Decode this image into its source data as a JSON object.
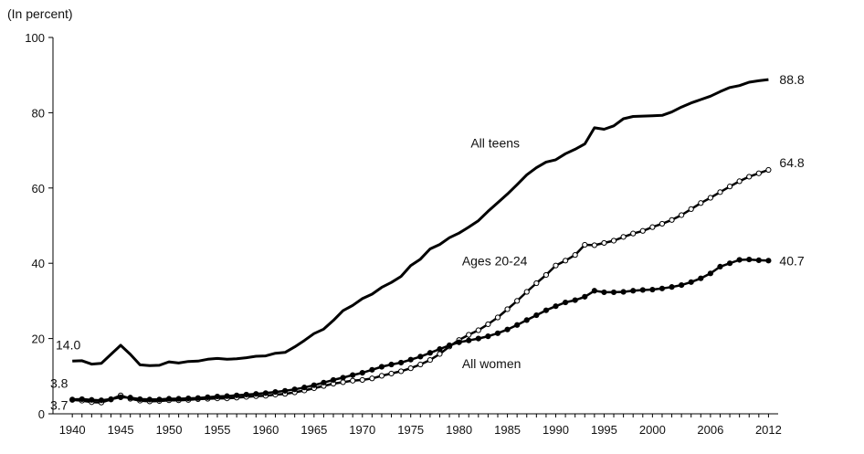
{
  "chart_data": {
    "type": "line",
    "unit_label": "(In percent)",
    "title": "",
    "xlabel": "",
    "ylabel": "",
    "ylim": [
      0,
      100
    ],
    "xlim": [
      1938,
      2013
    ],
    "y_ticks": [
      0,
      20,
      40,
      60,
      80,
      100
    ],
    "x_tick_labels": [
      {
        "year": 1940,
        "label": "1940"
      },
      {
        "year": 1945,
        "label": "1945"
      },
      {
        "year": 1950,
        "label": "1950"
      },
      {
        "year": 1955,
        "label": "1955"
      },
      {
        "year": 1960,
        "label": "1960"
      },
      {
        "year": 1965,
        "label": "1965"
      },
      {
        "year": 1970,
        "label": "1970"
      },
      {
        "year": 1975,
        "label": "1975"
      },
      {
        "year": 1980,
        "label": "1980"
      },
      {
        "year": 1985,
        "label": "1985"
      },
      {
        "year": 1990,
        "label": "1990"
      },
      {
        "year": 1995,
        "label": "1995"
      },
      {
        "year": 2000,
        "label": "2000"
      },
      {
        "year": 2006,
        "label": "2006"
      },
      {
        "year": 2012,
        "label": "2012"
      }
    ],
    "x": [
      1940,
      1941,
      1942,
      1943,
      1944,
      1945,
      1946,
      1947,
      1948,
      1949,
      1950,
      1951,
      1952,
      1953,
      1954,
      1955,
      1956,
      1957,
      1958,
      1959,
      1960,
      1961,
      1962,
      1963,
      1964,
      1965,
      1966,
      1967,
      1968,
      1969,
      1970,
      1971,
      1972,
      1973,
      1974,
      1975,
      1976,
      1977,
      1978,
      1979,
      1980,
      1981,
      1982,
      1983,
      1984,
      1985,
      1986,
      1987,
      1988,
      1989,
      1990,
      1991,
      1992,
      1993,
      1994,
      1995,
      1996,
      1997,
      1998,
      1999,
      2000,
      2001,
      2002,
      2003,
      2004,
      2005,
      2006,
      2007,
      2008,
      2009,
      2010,
      2011,
      2012
    ],
    "series": [
      {
        "name": "All teens",
        "label": "All teens",
        "marker": "none",
        "start_label": "14.0",
        "end_label": "88.8",
        "values": [
          14.0,
          14.1,
          13.2,
          13.4,
          15.8,
          18.2,
          15.8,
          13.0,
          12.8,
          12.9,
          13.8,
          13.5,
          13.9,
          14.0,
          14.5,
          14.7,
          14.5,
          14.6,
          14.9,
          15.3,
          15.4,
          16.1,
          16.3,
          17.8,
          19.5,
          21.3,
          22.5,
          24.8,
          27.4,
          28.8,
          30.6,
          31.8,
          33.6,
          34.9,
          36.5,
          39.4,
          41.1,
          43.8,
          45.0,
          46.8,
          48.0,
          49.6,
          51.3,
          53.8,
          56.1,
          58.4,
          60.9,
          63.5,
          65.4,
          66.9,
          67.5,
          69.1,
          70.3,
          71.7,
          76.0,
          75.6,
          76.5,
          78.4,
          79.0,
          79.1,
          79.2,
          79.3,
          80.2,
          81.5,
          82.6,
          83.5,
          84.4,
          85.6,
          86.7,
          87.2,
          88.1,
          88.5,
          88.8
        ]
      },
      {
        "name": "Ages 20-24",
        "label": "Ages 20-24",
        "marker": "open-circle",
        "start_label": "3.7",
        "end_label": "64.8",
        "values": [
          3.7,
          3.5,
          3.1,
          3.0,
          3.8,
          4.9,
          4.0,
          3.5,
          3.3,
          3.4,
          3.6,
          3.6,
          3.7,
          3.9,
          4.0,
          4.1,
          4.1,
          4.3,
          4.5,
          4.7,
          4.8,
          5.1,
          5.3,
          5.7,
          6.2,
          6.8,
          7.4,
          8.0,
          8.4,
          8.8,
          9.0,
          9.4,
          10.1,
          10.7,
          11.3,
          12.1,
          13.1,
          14.3,
          15.9,
          17.9,
          19.6,
          21.0,
          22.2,
          23.8,
          25.6,
          27.8,
          30.0,
          32.4,
          34.7,
          36.9,
          39.4,
          40.7,
          42.2,
          44.9,
          44.8,
          45.4,
          46.0,
          47.0,
          47.9,
          48.6,
          49.6,
          50.5,
          51.5,
          52.8,
          54.4,
          56.0,
          57.4,
          58.9,
          60.4,
          61.8,
          63.0,
          63.9,
          64.8
        ]
      },
      {
        "name": "All women",
        "label": "All women",
        "marker": "filled-circle",
        "start_label": "3.8",
        "end_label": "40.7",
        "values": [
          3.8,
          3.9,
          3.7,
          3.6,
          3.9,
          4.4,
          4.3,
          3.9,
          3.8,
          3.8,
          4.0,
          4.0,
          4.1,
          4.2,
          4.4,
          4.6,
          4.7,
          4.9,
          5.1,
          5.3,
          5.5,
          5.8,
          6.1,
          6.5,
          7.0,
          7.6,
          8.3,
          9.0,
          9.6,
          10.3,
          10.9,
          11.7,
          12.5,
          13.1,
          13.6,
          14.4,
          15.2,
          16.2,
          17.2,
          18.2,
          19.0,
          19.5,
          20.0,
          20.6,
          21.4,
          22.4,
          23.6,
          24.9,
          26.2,
          27.5,
          28.6,
          29.6,
          30.2,
          31.1,
          32.7,
          32.3,
          32.3,
          32.4,
          32.7,
          32.9,
          33.0,
          33.3,
          33.7,
          34.2,
          35.0,
          36.0,
          37.3,
          39.1,
          40.0,
          40.9,
          41.0,
          40.8,
          40.7
        ]
      }
    ],
    "annotations": [
      "All teens",
      "Ages 20-24",
      "All women"
    ]
  }
}
